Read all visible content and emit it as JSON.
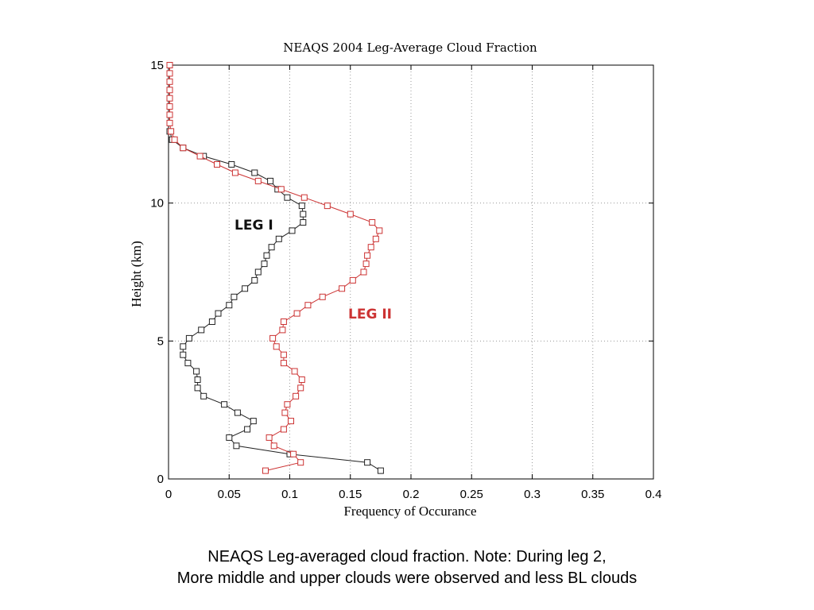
{
  "chart_data": {
    "type": "line",
    "title": "NEAQS 2004 Leg-Average Cloud Fraction",
    "xlabel": "Frequency of Occurance",
    "ylabel": "Height (km)",
    "xlim": [
      0,
      0.4
    ],
    "ylim": [
      0,
      15
    ],
    "xticks": [
      "0",
      "0.05",
      "0.1",
      "0.15",
      "0.2",
      "0.25",
      "0.3",
      "0.35",
      "0.4"
    ],
    "yticks": [
      "0",
      "5",
      "10",
      "15"
    ],
    "grid": true,
    "series": [
      {
        "name": "LEG I",
        "color": "#222222",
        "marker": "square",
        "points": [
          {
            "x": 0.175,
            "y": 0.3
          },
          {
            "x": 0.164,
            "y": 0.6
          },
          {
            "x": 0.1,
            "y": 0.9
          },
          {
            "x": 0.056,
            "y": 1.2
          },
          {
            "x": 0.05,
            "y": 1.5
          },
          {
            "x": 0.065,
            "y": 1.8
          },
          {
            "x": 0.07,
            "y": 2.1
          },
          {
            "x": 0.057,
            "y": 2.4
          },
          {
            "x": 0.046,
            "y": 2.7
          },
          {
            "x": 0.029,
            "y": 3.0
          },
          {
            "x": 0.024,
            "y": 3.3
          },
          {
            "x": 0.024,
            "y": 3.6
          },
          {
            "x": 0.023,
            "y": 3.9
          },
          {
            "x": 0.016,
            "y": 4.2
          },
          {
            "x": 0.012,
            "y": 4.5
          },
          {
            "x": 0.012,
            "y": 4.8
          },
          {
            "x": 0.017,
            "y": 5.1
          },
          {
            "x": 0.027,
            "y": 5.4
          },
          {
            "x": 0.036,
            "y": 5.7
          },
          {
            "x": 0.041,
            "y": 6.0
          },
          {
            "x": 0.05,
            "y": 6.3
          },
          {
            "x": 0.054,
            "y": 6.6
          },
          {
            "x": 0.063,
            "y": 6.9
          },
          {
            "x": 0.071,
            "y": 7.2
          },
          {
            "x": 0.074,
            "y": 7.5
          },
          {
            "x": 0.079,
            "y": 7.8
          },
          {
            "x": 0.081,
            "y": 8.1
          },
          {
            "x": 0.085,
            "y": 8.4
          },
          {
            "x": 0.091,
            "y": 8.7
          },
          {
            "x": 0.102,
            "y": 9.0
          },
          {
            "x": 0.111,
            "y": 9.3
          },
          {
            "x": 0.111,
            "y": 9.6
          },
          {
            "x": 0.11,
            "y": 9.9
          },
          {
            "x": 0.098,
            "y": 10.2
          },
          {
            "x": 0.09,
            "y": 10.5
          },
          {
            "x": 0.084,
            "y": 10.8
          },
          {
            "x": 0.071,
            "y": 11.1
          },
          {
            "x": 0.052,
            "y": 11.4
          },
          {
            "x": 0.029,
            "y": 11.7
          },
          {
            "x": 0.012,
            "y": 12.0
          },
          {
            "x": 0.003,
            "y": 12.3
          },
          {
            "x": 0.001,
            "y": 12.6
          }
        ]
      },
      {
        "name": "LEG II",
        "color": "#cc3333",
        "marker": "square",
        "points": [
          {
            "x": 0.08,
            "y": 0.3
          },
          {
            "x": 0.109,
            "y": 0.6
          },
          {
            "x": 0.103,
            "y": 0.9
          },
          {
            "x": 0.087,
            "y": 1.2
          },
          {
            "x": 0.083,
            "y": 1.5
          },
          {
            "x": 0.095,
            "y": 1.8
          },
          {
            "x": 0.101,
            "y": 2.1
          },
          {
            "x": 0.096,
            "y": 2.4
          },
          {
            "x": 0.098,
            "y": 2.7
          },
          {
            "x": 0.105,
            "y": 3.0
          },
          {
            "x": 0.109,
            "y": 3.3
          },
          {
            "x": 0.11,
            "y": 3.6
          },
          {
            "x": 0.104,
            "y": 3.9
          },
          {
            "x": 0.095,
            "y": 4.2
          },
          {
            "x": 0.095,
            "y": 4.5
          },
          {
            "x": 0.089,
            "y": 4.8
          },
          {
            "x": 0.086,
            "y": 5.1
          },
          {
            "x": 0.094,
            "y": 5.4
          },
          {
            "x": 0.095,
            "y": 5.7
          },
          {
            "x": 0.106,
            "y": 6.0
          },
          {
            "x": 0.115,
            "y": 6.3
          },
          {
            "x": 0.127,
            "y": 6.6
          },
          {
            "x": 0.143,
            "y": 6.9
          },
          {
            "x": 0.152,
            "y": 7.2
          },
          {
            "x": 0.161,
            "y": 7.5
          },
          {
            "x": 0.163,
            "y": 7.8
          },
          {
            "x": 0.164,
            "y": 8.1
          },
          {
            "x": 0.167,
            "y": 8.4
          },
          {
            "x": 0.171,
            "y": 8.7
          },
          {
            "x": 0.174,
            "y": 9.0
          },
          {
            "x": 0.168,
            "y": 9.3
          },
          {
            "x": 0.15,
            "y": 9.6
          },
          {
            "x": 0.131,
            "y": 9.9
          },
          {
            "x": 0.112,
            "y": 10.2
          },
          {
            "x": 0.093,
            "y": 10.5
          },
          {
            "x": 0.074,
            "y": 10.8
          },
          {
            "x": 0.055,
            "y": 11.1
          },
          {
            "x": 0.04,
            "y": 11.4
          },
          {
            "x": 0.026,
            "y": 11.7
          },
          {
            "x": 0.012,
            "y": 12.0
          },
          {
            "x": 0.005,
            "y": 12.3
          },
          {
            "x": 0.002,
            "y": 12.6
          },
          {
            "x": 0.001,
            "y": 12.9
          },
          {
            "x": 0.001,
            "y": 13.2
          },
          {
            "x": 0.001,
            "y": 13.5
          },
          {
            "x": 0.001,
            "y": 13.8
          },
          {
            "x": 0.001,
            "y": 14.1
          },
          {
            "x": 0.001,
            "y": 14.4
          },
          {
            "x": 0.001,
            "y": 14.7
          },
          {
            "x": 0.001,
            "y": 15.0
          }
        ]
      }
    ]
  },
  "caption": {
    "line1": "NEAQS Leg-averaged cloud fraction. Note: During leg 2,",
    "line2": "More middle and upper clouds were observed and less BL clouds"
  }
}
